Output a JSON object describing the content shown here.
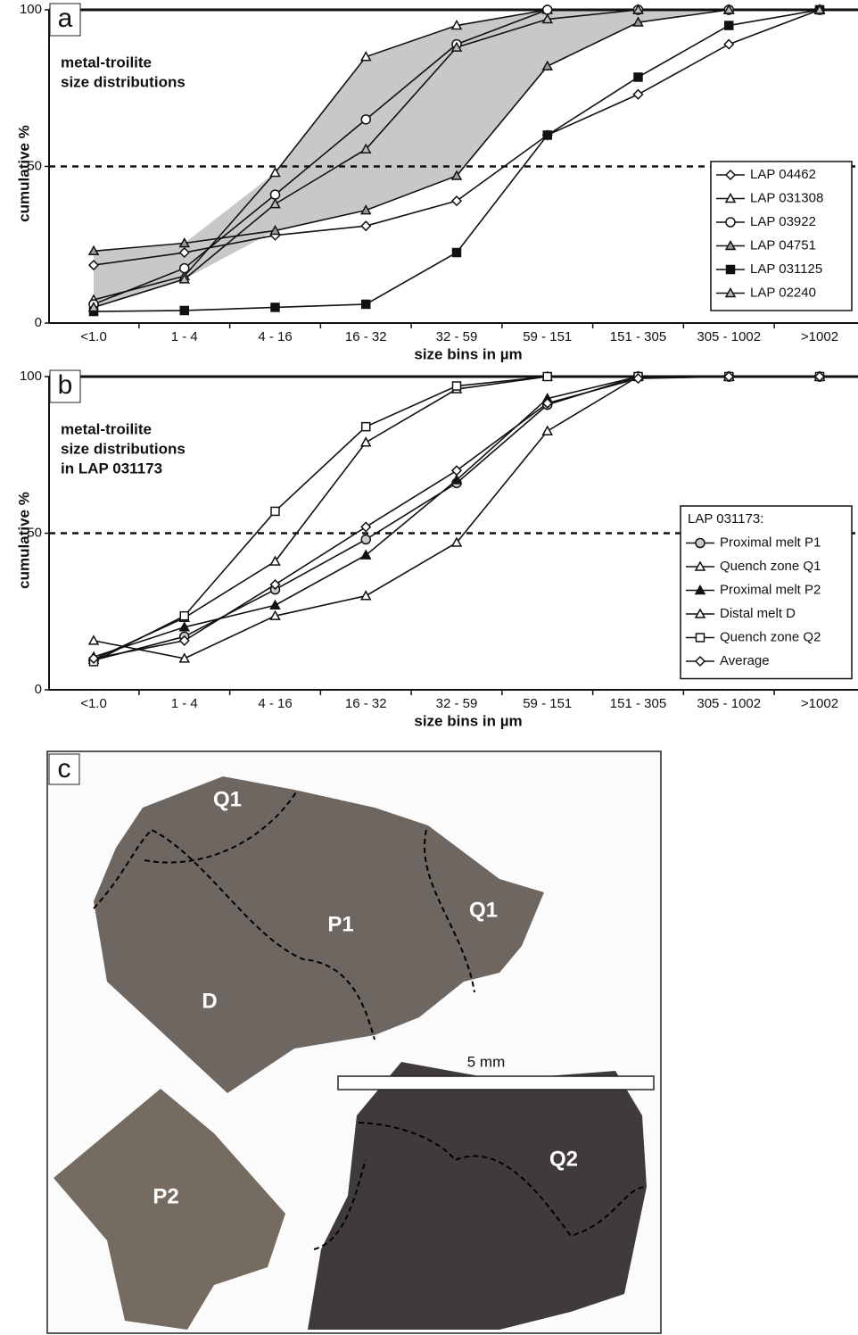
{
  "chart_data": [
    {
      "type": "line",
      "panel_label": "a",
      "annotation": [
        "metal-troilite",
        "size distributions"
      ],
      "xlabel": "size bins in µm",
      "ylabel": "cumulative %",
      "categories": [
        "<1.0",
        "1 - 4",
        "4 - 16",
        "16 - 32",
        "32 - 59",
        "59 - 151",
        "151 - 305",
        "305 - 1002",
        ">1002"
      ],
      "ylim": [
        0,
        100
      ],
      "yticks": [
        0,
        50,
        100
      ],
      "hline": 50,
      "shaded_range": true,
      "series": [
        {
          "name": "LAP 04462",
          "color": "#111",
          "marker": "diamond",
          "marker_fill": "#fff",
          "values": [
            18.5,
            22.5,
            28,
            31,
            39,
            60,
            73,
            89,
            100
          ]
        },
        {
          "name": "LAP 031308",
          "color": "#111",
          "marker": "triangle",
          "marker_fill": "#fff",
          "values": [
            7.4,
            15,
            48,
            85,
            95,
            100,
            100,
            100,
            100
          ]
        },
        {
          "name": "LAP 03922",
          "color": "#111",
          "marker": "circle",
          "marker_fill": "#fff",
          "values": [
            6,
            17.5,
            41,
            65,
            89,
            100,
            100,
            100,
            100
          ]
        },
        {
          "name": "LAP 04751",
          "color": "#111",
          "marker": "triangle",
          "marker_fill": "#999",
          "values": [
            23,
            25.5,
            29.5,
            36,
            47,
            82,
            96,
            100,
            100
          ]
        },
        {
          "name": "LAP 031125",
          "color": "#111",
          "marker": "square",
          "marker_fill": "#111",
          "values": [
            3.7,
            4,
            5,
            6,
            22.5,
            60,
            78.5,
            95,
            100
          ]
        },
        {
          "name": "LAP 02240",
          "color": "#111",
          "marker": "triangle",
          "marker_fill": "#bbb",
          "values": [
            5,
            14,
            38,
            55.5,
            88,
            97,
            100,
            100,
            100
          ]
        }
      ]
    },
    {
      "type": "line",
      "panel_label": "b",
      "annotation": [
        "metal-troilite",
        "size distributions",
        "in LAP 031173"
      ],
      "xlabel": "size bins in µm",
      "ylabel": "cumulative %",
      "legend_title": "LAP 031173:",
      "categories": [
        "<1.0",
        "1 - 4",
        "4 - 16",
        "16 - 32",
        "32 - 59",
        "59 - 151",
        "151 - 305",
        "305 - 1002",
        ">1002"
      ],
      "ylim": [
        0,
        100
      ],
      "yticks": [
        0,
        50,
        100
      ],
      "hline": 50,
      "shaded_range": false,
      "series": [
        {
          "name": "Proximal melt P1",
          "color": "#111",
          "marker": "circle",
          "marker_fill": "#ccc",
          "values": [
            9.4,
            17,
            32,
            48,
            66,
            91,
            100,
            100,
            100
          ]
        },
        {
          "name": "Quench zone Q1",
          "color": "#111",
          "marker": "triangle",
          "marker_fill": "#fff",
          "values": [
            9.7,
            23,
            41,
            79,
            96,
            100,
            100,
            100,
            100
          ]
        },
        {
          "name": "Proximal melt P2",
          "color": "#111",
          "marker": "triangle",
          "marker_fill": "#111",
          "values": [
            10.5,
            20,
            27,
            43,
            67,
            93,
            100,
            100,
            100
          ]
        },
        {
          "name": "Distal melt D",
          "color": "#111",
          "marker": "triangle",
          "marker_fill": "#fff",
          "values": [
            15.7,
            10,
            23.6,
            30,
            47,
            82.6,
            100,
            100,
            100
          ]
        },
        {
          "name": "Quench zone Q2",
          "color": "#111",
          "marker": "square",
          "marker_fill": "#fff",
          "values": [
            9,
            23.6,
            57,
            84,
            97,
            100,
            100,
            100,
            100
          ]
        },
        {
          "name": "Average",
          "color": "#111",
          "marker": "diamond",
          "marker_fill": "#fff",
          "values": [
            10,
            15.7,
            33.6,
            52,
            70,
            91.5,
            99.4,
            100,
            100
          ]
        }
      ]
    }
  ],
  "photo": {
    "panel_label": "c",
    "labels": [
      "Q1",
      "P1",
      "Q1",
      "D",
      "P2",
      "Q2"
    ],
    "scale_bar": "5 mm"
  }
}
